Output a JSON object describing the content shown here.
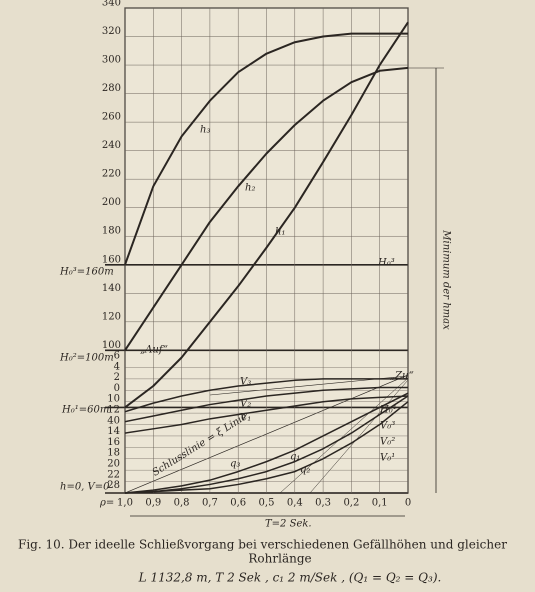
{
  "chart_data": {
    "type": "line",
    "x": [
      1,
      0.9,
      0.8,
      0.7,
      0.6,
      0.5,
      0.4,
      0.3,
      0.2,
      0.1,
      0
    ],
    "xlim": [
      1,
      0
    ],
    "xticks": [
      {
        "value": 1,
        "label": "1,0"
      },
      {
        "value": 0.9,
        "label": "0,9"
      },
      {
        "value": 0.8,
        "label": "0,8"
      },
      {
        "value": 0.7,
        "label": "0,7"
      },
      {
        "value": 0.6,
        "label": "0,6"
      },
      {
        "value": 0.5,
        "label": "0,5"
      },
      {
        "value": 0.4,
        "label": "0,4"
      },
      {
        "value": 0.3,
        "label": "0,3"
      },
      {
        "value": 0.2,
        "label": "0,2"
      },
      {
        "value": 0.1,
        "label": "0,1"
      },
      0
    ],
    "ylim": [
      0,
      340
    ],
    "yticks": [
      100,
      120,
      140,
      160,
      180,
      200,
      220,
      240,
      260,
      280,
      300,
      320,
      340
    ],
    "minor_yticks": [
      8,
      16,
      24,
      32,
      40,
      48,
      56,
      64,
      72,
      80,
      88
    ],
    "heavy_levels": [
      160,
      100,
      60,
      0
    ],
    "grid": true,
    "series": [
      {
        "name": "h₃",
        "color": "#2b2622",
        "values": [
          160,
          215,
          250,
          275,
          295,
          308,
          316,
          320,
          322,
          322,
          322
        ]
      },
      {
        "name": "h₂",
        "color": "#2b2622",
        "values": [
          100,
          130,
          160,
          190,
          215,
          238,
          258,
          275,
          288,
          296,
          298
        ]
      },
      {
        "name": "h₁",
        "color": "#2b2622",
        "values": [
          60,
          75,
          95,
          120,
          145,
          172,
          200,
          232,
          265,
          300,
          330
        ]
      },
      {
        "name": "V₃",
        "color": "#2b2622",
        "values": [
          57,
          63,
          68,
          72,
          75,
          77,
          79,
          80,
          80,
          80,
          80
        ]
      },
      {
        "name": "V₂",
        "color": "#2b2622",
        "values": [
          50,
          54,
          58,
          62,
          65,
          68,
          70,
          72,
          73,
          74,
          74
        ]
      },
      {
        "name": "V₁",
        "color": "#2b2622",
        "values": [
          42,
          45,
          48,
          52,
          55,
          58,
          61,
          64,
          66,
          67,
          68
        ]
      },
      {
        "name": "q₃",
        "color": "#2b2622",
        "values": [
          0,
          2,
          5,
          9,
          15,
          22,
          30,
          40,
          50,
          60,
          70
        ]
      },
      {
        "name": "q₂",
        "color": "#2b2622",
        "values": [
          0,
          1,
          3,
          6,
          10,
          15,
          22,
          31,
          42,
          55,
          68
        ]
      },
      {
        "name": "q₁",
        "color": "#2b2622",
        "values": [
          0,
          1,
          2,
          3,
          6,
          10,
          15,
          24,
          35,
          48,
          64
        ]
      }
    ],
    "secondary_labels": [
      "6",
      "4",
      "2",
      "0",
      "10",
      "12",
      "40",
      "14",
      "16",
      "18",
      "20",
      "22",
      "28"
    ],
    "annotations": [
      "H₀³=160m",
      "H₀²=100m",
      "H₀¹=60m",
      "h=0, V=0",
      "ρ=",
      "„Auf“",
      "„Zu“",
      "H₀³",
      "H₀¹",
      "V₀³",
      "V₀²",
      "V₀¹",
      "Minimum der hmax",
      "T=2 Sek.",
      "Schlusslinie = ξ Linie"
    ],
    "caption": [
      "Fig. 10.  Der ideelle Schließvorgang bei verschiedenen Gefällhöhen und gleicher",
      "Rohrlänge",
      "L 1132,8 m,  T 2 Sek ,  c₁ 2 m/Sek ,  (Q₁ = Q₂ = Q₃)."
    ]
  }
}
